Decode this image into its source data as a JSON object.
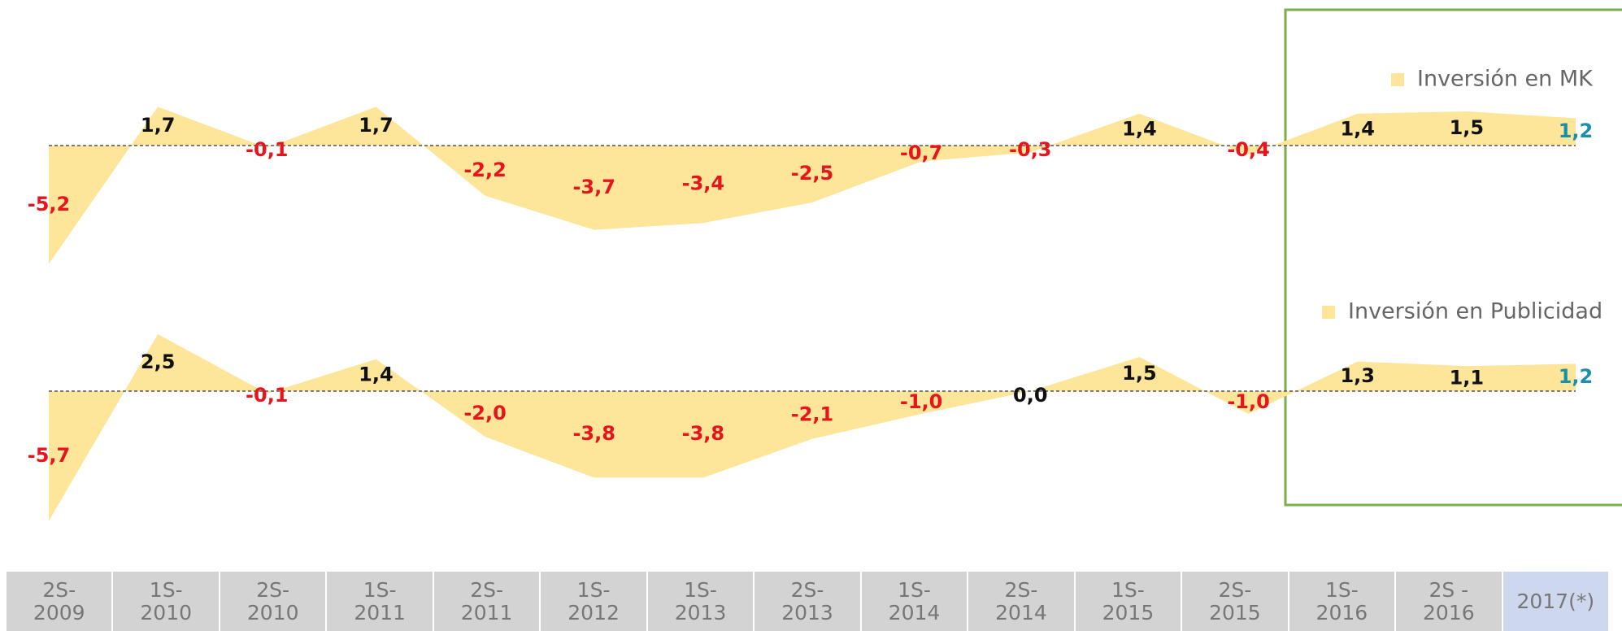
{
  "chart_data": {
    "type": "area",
    "categories": [
      "2S-\n2009",
      "1S-\n2010",
      "2S-\n2010",
      "1S-\n2011",
      "2S-\n2011",
      "1S-\n2012",
      "1S-\n2013",
      "2S-\n2013",
      "1S-\n2014",
      "2S-\n2014",
      "1S-\n2015",
      "2S-\n2015",
      "1S-\n2016",
      "2S -\n2016",
      "2017(*)"
    ],
    "series": [
      {
        "name": "Inversión en MK",
        "color": "#fde59a",
        "values": [
          -5.2,
          1.7,
          -0.1,
          1.7,
          -2.2,
          -3.7,
          -3.4,
          -2.5,
          -0.7,
          -0.3,
          1.4,
          -0.4,
          1.4,
          1.5,
          1.2
        ],
        "value_labels": [
          "-5,2",
          "1,7",
          "-0,1",
          "1,7",
          "-2,2",
          "-3,7",
          "-3,4",
          "-2,5",
          "-0,7",
          "-0,3",
          "1,4",
          "-0,4",
          "1,4",
          "1,5",
          "1,2"
        ]
      },
      {
        "name": "Inversión en Publicidad",
        "color": "#fde59a",
        "values": [
          -5.7,
          2.5,
          -0.1,
          1.4,
          -2.0,
          -3.8,
          -3.8,
          -2.1,
          -1.0,
          0.0,
          1.5,
          -1.0,
          1.3,
          1.1,
          1.2
        ],
        "value_labels": [
          "-5,7",
          "2,5",
          "-0,1",
          "1,4",
          "-2,0",
          "-3,8",
          "-3,8",
          "-2,1",
          "-1,0",
          "0,0",
          "1,5",
          "-1,0",
          "1,3",
          "1,1",
          "1,2"
        ]
      }
    ]
  }
}
